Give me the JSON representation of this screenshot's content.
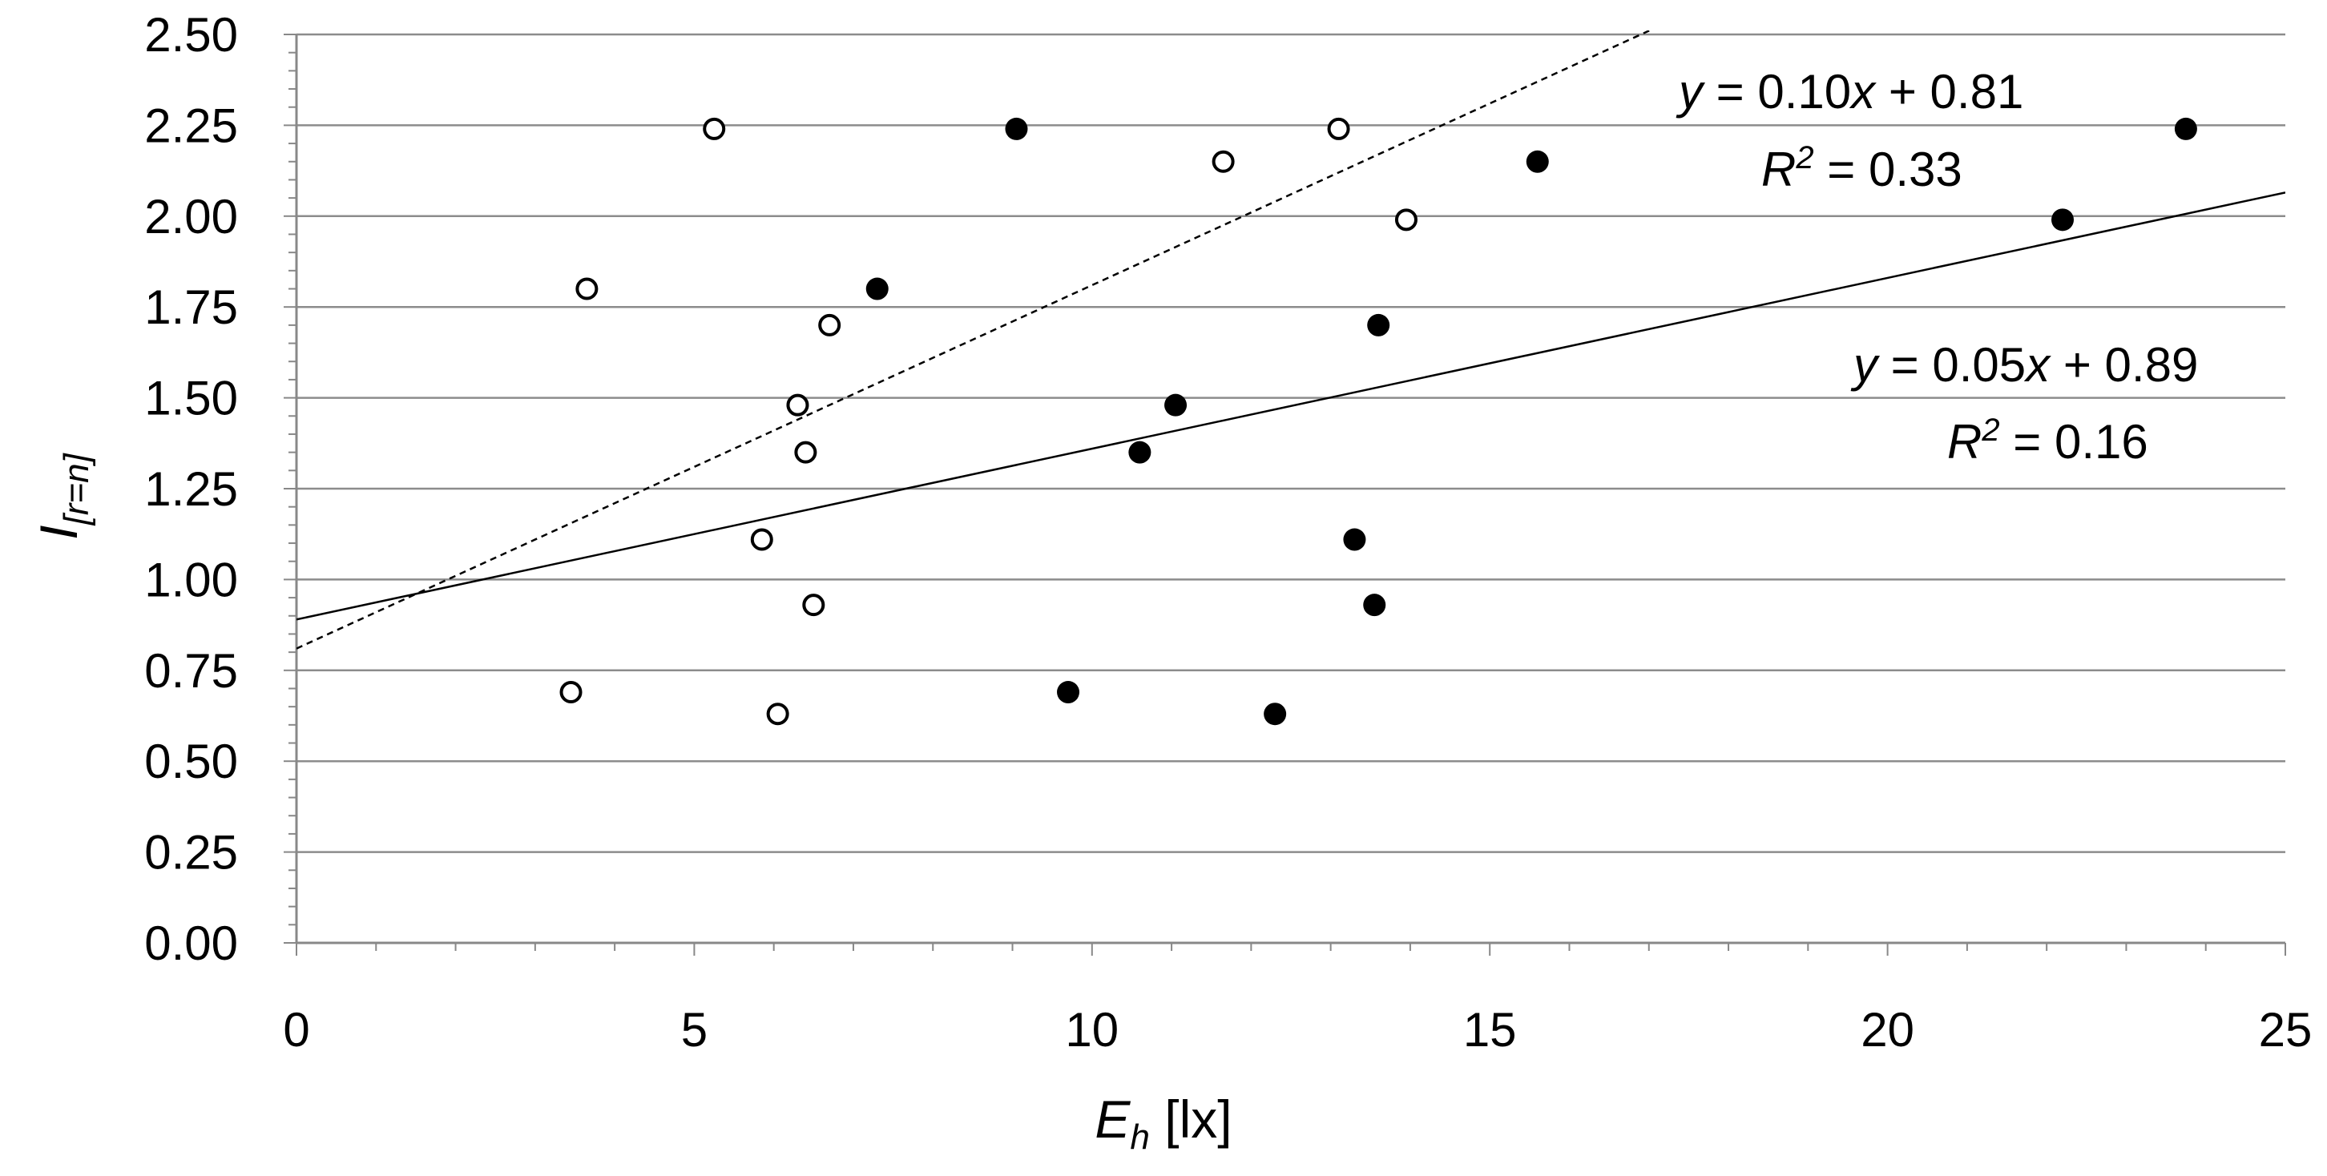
{
  "chart_data": {
    "type": "scatter",
    "title": "",
    "xlabel": {
      "main": "E",
      "sub": "h",
      "unit": " [lx]"
    },
    "ylabel": {
      "main": "I",
      "sub": "[r=n]"
    },
    "xlim": [
      0,
      25
    ],
    "ylim": [
      0,
      2.5
    ],
    "x_ticks": [
      0,
      5,
      10,
      15,
      20,
      25
    ],
    "y_ticks": [
      0,
      0.25,
      0.5,
      0.75,
      1.0,
      1.25,
      1.5,
      1.75,
      2.0,
      2.25,
      2.5
    ],
    "x_tick_labels": [
      "0",
      "5",
      "10",
      "15",
      "20",
      "25"
    ],
    "y_tick_labels": [
      "0.00",
      "0.25",
      "0.50",
      "0.75",
      "1.00",
      "1.25",
      "1.50",
      "1.75",
      "2.00",
      "2.25",
      "2.50"
    ],
    "grid": "horizontal",
    "series": [
      {
        "name": "open circles",
        "marker": "open",
        "points": [
          {
            "x": 5.25,
            "y": 2.24
          },
          {
            "x": 13.1,
            "y": 2.24
          },
          {
            "x": 11.65,
            "y": 2.15
          },
          {
            "x": 13.95,
            "y": 1.99
          },
          {
            "x": 3.65,
            "y": 1.8
          },
          {
            "x": 6.7,
            "y": 1.7
          },
          {
            "x": 6.3,
            "y": 1.48
          },
          {
            "x": 6.4,
            "y": 1.35
          },
          {
            "x": 5.85,
            "y": 1.11
          },
          {
            "x": 6.5,
            "y": 0.93
          },
          {
            "x": 3.45,
            "y": 0.69
          },
          {
            "x": 6.05,
            "y": 0.63
          }
        ],
        "trendline": {
          "slope": 0.1,
          "intercept": 0.81,
          "style": "dashed",
          "equation": "y = 0.10x + 0.81",
          "r2": "R² = 0.33"
        }
      },
      {
        "name": "filled circles",
        "marker": "filled",
        "points": [
          {
            "x": 9.05,
            "y": 2.24
          },
          {
            "x": 23.75,
            "y": 2.24
          },
          {
            "x": 15.6,
            "y": 2.15
          },
          {
            "x": 22.2,
            "y": 1.99
          },
          {
            "x": 7.3,
            "y": 1.8
          },
          {
            "x": 13.6,
            "y": 1.7
          },
          {
            "x": 11.05,
            "y": 1.48
          },
          {
            "x": 10.6,
            "y": 1.35
          },
          {
            "x": 13.3,
            "y": 1.11
          },
          {
            "x": 13.55,
            "y": 0.93
          },
          {
            "x": 9.7,
            "y": 0.69
          },
          {
            "x": 12.3,
            "y": 0.63
          }
        ],
        "trendline": {
          "slope": 0.047,
          "intercept": 0.89,
          "style": "solid",
          "equation": "y = 0.05x + 0.89",
          "r2": "R² = 0.16"
        }
      }
    ],
    "annotations": {
      "dashed_eq": {
        "y": "y",
        "eq": " = 0.10",
        "x": "x",
        "rest": " + 0.81"
      },
      "dashed_r2": {
        "r": "R",
        "sup": "2",
        "rest": " = 0.33"
      },
      "solid_eq": {
        "y": "y",
        "eq": " = 0.05",
        "x": "x",
        "rest": " + 0.89"
      },
      "solid_r2": {
        "r": "R",
        "sup": "2",
        "rest": " = 0.16"
      }
    },
    "colors": {
      "axis": "#888888",
      "grid": "#8c8c8c",
      "marker": "#000000",
      "line": "#000000"
    }
  }
}
